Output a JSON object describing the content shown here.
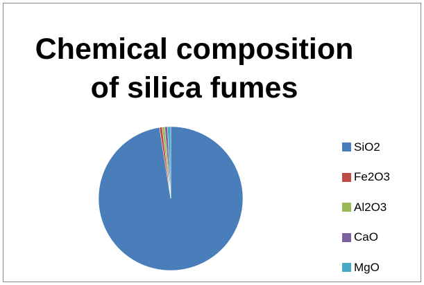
{
  "chart_data": {
    "type": "pie",
    "title_lines": [
      "Chemical composition",
      "of silica fumes"
    ],
    "title": "Chemical composition of silica fumes",
    "legend_position": "right",
    "categories": [
      "SiO2",
      "Fe2O3",
      "Al2O3",
      "CaO",
      "MgO"
    ],
    "values": [
      97.5,
      0.6,
      0.6,
      0.6,
      0.7
    ],
    "colors": [
      "#4A7EBB",
      "#BE4B48",
      "#98B954",
      "#7D60A0",
      "#46AAC5"
    ]
  }
}
